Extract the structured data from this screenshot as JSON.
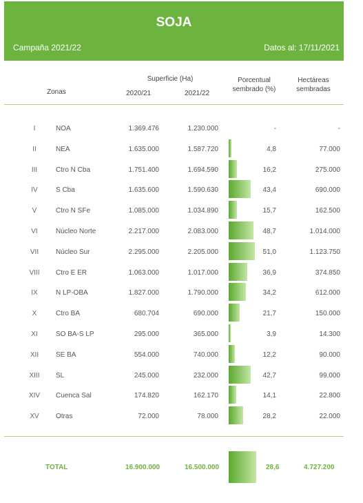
{
  "header": {
    "title": "SOJA",
    "campaign": "Campaña 2021/22",
    "date": "Datos al: 17/11/2021"
  },
  "columns": {
    "zonas": "Zonas",
    "superficie": "Superficie (Ha)",
    "y1": "2020/21",
    "y2": "2021/22",
    "pct_line1": "Porcentual",
    "pct_line2": "sembrado (%)",
    "ha_line1": "Hectáreas",
    "ha_line2": "sembradas"
  },
  "rows": [
    {
      "num": "I",
      "zone": "NOA",
      "y1": "1.369.476",
      "y2": "1.230.000",
      "pct": "-",
      "ha": "-",
      "pct_value": 0
    },
    {
      "num": "II",
      "zone": "NEA",
      "y1": "1.635.000",
      "y2": "1.587.720",
      "pct": "4,8",
      "ha": "77.000",
      "pct_value": 4.8
    },
    {
      "num": "III",
      "zone": "Ctro N Cba",
      "y1": "1.751.400",
      "y2": "1.694.590",
      "pct": "16,2",
      "ha": "275.000",
      "pct_value": 16.2
    },
    {
      "num": "IV",
      "zone": "S Cba",
      "y1": "1.635.600",
      "y2": "1.590.630",
      "pct": "43,4",
      "ha": "690.000",
      "pct_value": 43.4
    },
    {
      "num": "V",
      "zone": "Ctro N SFe",
      "y1": "1.085.000",
      "y2": "1.034.890",
      "pct": "15,7",
      "ha": "162.500",
      "pct_value": 15.7
    },
    {
      "num": "VI",
      "zone": "Núcleo Norte",
      "y1": "2.217.000",
      "y2": "2.083.000",
      "pct": "48,7",
      "ha": "1.014.000",
      "pct_value": 48.7
    },
    {
      "num": "VII",
      "zone": "Núcleo Sur",
      "y1": "2.295.000",
      "y2": "2.205.000",
      "pct": "51,0",
      "ha": "1.123.750",
      "pct_value": 51.0
    },
    {
      "num": "VIII",
      "zone": "Ctro E ER",
      "y1": "1.063.000",
      "y2": "1.017.000",
      "pct": "36,9",
      "ha": "374.850",
      "pct_value": 36.9
    },
    {
      "num": "IX",
      "zone": "N LP-OBA",
      "y1": "1.827.000",
      "y2": "1.790.000",
      "pct": "34,2",
      "ha": "612.000",
      "pct_value": 34.2
    },
    {
      "num": "X",
      "zone": "Ctro BA",
      "y1": "680.704",
      "y2": "690.000",
      "pct": "21,7",
      "ha": "150.000",
      "pct_value": 21.7
    },
    {
      "num": "XI",
      "zone": "SO BA-S LP",
      "y1": "295.000",
      "y2": "365.000",
      "pct": "3,9",
      "ha": "14.300",
      "pct_value": 3.9
    },
    {
      "num": "XII",
      "zone": "SE BA",
      "y1": "554.000",
      "y2": "740.000",
      "pct": "12,2",
      "ha": "90.000",
      "pct_value": 12.2
    },
    {
      "num": "XIII",
      "zone": "SL",
      "y1": "245.000",
      "y2": "232.000",
      "pct": "42,7",
      "ha": "99.000",
      "pct_value": 42.7
    },
    {
      "num": "XIV",
      "zone": "Cuenca Sal",
      "y1": "174.820",
      "y2": "162.170",
      "pct": "14,1",
      "ha": "22.800",
      "pct_value": 14.1
    },
    {
      "num": "XV",
      "zone": "Otras",
      "y1": "72.000",
      "y2": "78.000",
      "pct": "28,2",
      "ha": "22.000",
      "pct_value": 28.2
    }
  ],
  "total": {
    "label": "TOTAL",
    "y1": "16.900.000",
    "y2": "16.500.000",
    "pct": "28,6",
    "ha": "4.727.200",
    "pct_value": 28.6
  },
  "colors": {
    "accent": "#6db33f",
    "bar_dark": "#5aa92e",
    "bar_light": "#c5e6a6"
  }
}
